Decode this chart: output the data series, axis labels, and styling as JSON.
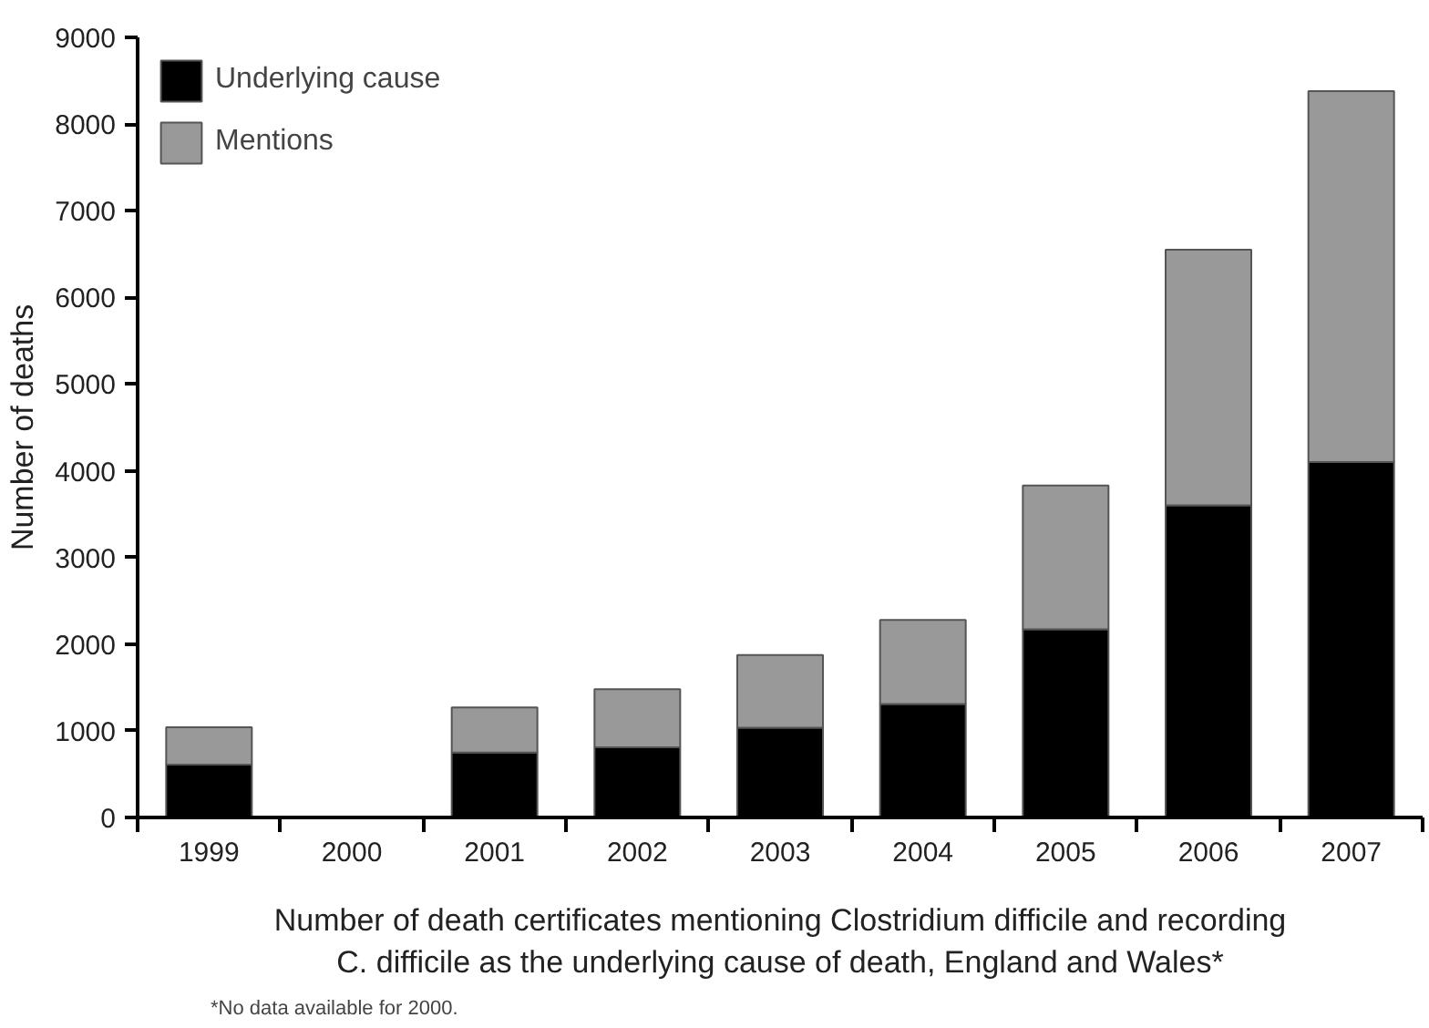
{
  "chart_data": {
    "type": "bar",
    "stacked": true,
    "categories": [
      "1999",
      "2000",
      "2001",
      "2002",
      "2003",
      "2004",
      "2005",
      "2006",
      "2007"
    ],
    "series": [
      {
        "name": "Underlying cause",
        "color": "#000000",
        "values": [
          610,
          null,
          750,
          810,
          1035,
          1310,
          2170,
          3600,
          4100
        ]
      },
      {
        "name": "Mentions",
        "color": "#999999",
        "values": [
          430,
          null,
          520,
          670,
          840,
          970,
          1660,
          2950,
          4280
        ]
      }
    ],
    "ylabel": "Number of deaths",
    "xlabel": "Number of death certificates mentioning Clostridium difficile and recording\nC. difficile as the underlying cause of death, England and Wales*",
    "annotations": [
      "*No data available for 2000."
    ],
    "ylim": [
      0,
      9000
    ],
    "yticks": [
      0,
      1000,
      2000,
      3000,
      4000,
      5000,
      6000,
      7000,
      8000,
      9000
    ],
    "grid": false,
    "legend": "top left"
  }
}
